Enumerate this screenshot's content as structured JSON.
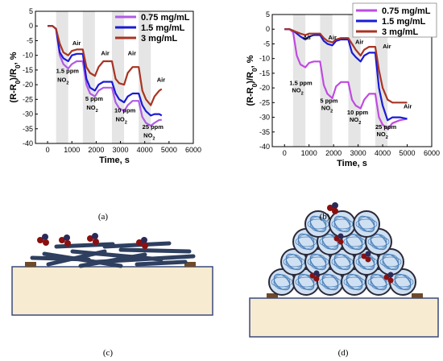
{
  "chart_data": [
    {
      "type": "line",
      "panel_label": "(a)",
      "xlabel": "Time, s",
      "ylabel": "(R-R0)/R0, %",
      "xlim": [
        -500,
        6000
      ],
      "ylim": [
        -40,
        5
      ],
      "xticks": [
        0,
        1000,
        2000,
        3000,
        4000,
        5000,
        6000
      ],
      "yticks": [
        5,
        0,
        -5,
        -10,
        -15,
        -20,
        -25,
        -30,
        -35,
        -40
      ],
      "shaded_intervals": [
        [
          350,
          850
        ],
        [
          1450,
          1950
        ],
        [
          2650,
          3150
        ],
        [
          3750,
          4250
        ]
      ],
      "legend_position": "top-right",
      "annotations": [
        {
          "text": "1.5 ppm",
          "x": 350,
          "y": -16
        },
        {
          "text": "NO2",
          "x": 400,
          "y": -19
        },
        {
          "text": "Air",
          "x": 1020,
          "y": -6.5
        },
        {
          "text": "5 ppm",
          "x": 1550,
          "y": -25.5
        },
        {
          "text": "NO2",
          "x": 1600,
          "y": -28.5
        },
        {
          "text": "Air",
          "x": 2200,
          "y": -10
        },
        {
          "text": "10 ppm",
          "x": 2750,
          "y": -29.5
        },
        {
          "text": "NO2",
          "x": 2800,
          "y": -32.5
        },
        {
          "text": "Air",
          "x": 3300,
          "y": -10
        },
        {
          "text": "25 ppm",
          "x": 3900,
          "y": -35
        },
        {
          "text": "NO2",
          "x": 3950,
          "y": -38
        },
        {
          "text": "Air",
          "x": 4500,
          "y": -19
        }
      ],
      "series": [
        {
          "name": "0.75 mg/mL",
          "color": "#b05ae6",
          "x": [
            0,
            200,
            350,
            500,
            650,
            850,
            1000,
            1200,
            1450,
            1600,
            1750,
            1950,
            2100,
            2300,
            2650,
            2800,
            2950,
            3150,
            3300,
            3500,
            3750,
            3900,
            4050,
            4250,
            4400,
            4600,
            4700
          ],
          "y": [
            0,
            0,
            -1,
            -10,
            -13,
            -14.5,
            -13,
            -12,
            -12,
            -20,
            -23,
            -24,
            -22,
            -21,
            -21,
            -26,
            -28,
            -29,
            -27,
            -25.5,
            -25.5,
            -31,
            -33,
            -34,
            -33,
            -32,
            -32
          ]
        },
        {
          "name": "1.5 mg/mL",
          "color": "#1a1ad6",
          "x": [
            0,
            200,
            350,
            500,
            650,
            850,
            1000,
            1200,
            1450,
            1600,
            1750,
            1950,
            2100,
            2300,
            2650,
            2800,
            2950,
            3150,
            3300,
            3500,
            3750,
            3900,
            4050,
            4250,
            4400,
            4600,
            4700
          ],
          "y": [
            0,
            0,
            -1,
            -9,
            -11,
            -12,
            -10,
            -9.5,
            -9.5,
            -18,
            -21,
            -22,
            -20,
            -19,
            -19,
            -23,
            -25,
            -26,
            -24,
            -23,
            -23,
            -27,
            -29,
            -30.5,
            -30,
            -30,
            -30.5
          ]
        },
        {
          "name": "3 mg/mL",
          "color": "#a83422",
          "x": [
            0,
            200,
            350,
            500,
            650,
            850,
            1000,
            1200,
            1450,
            1600,
            1750,
            1950,
            2100,
            2300,
            2650,
            2800,
            2950,
            3150,
            3300,
            3500,
            3750,
            3900,
            4050,
            4250,
            4400,
            4600,
            4700
          ],
          "y": [
            0,
            0,
            -1,
            -6,
            -9,
            -10,
            -8.5,
            -8,
            -8,
            -14,
            -16,
            -17,
            -14,
            -12,
            -12,
            -18,
            -19.5,
            -20,
            -16,
            -14,
            -14,
            -22,
            -25,
            -27,
            -24,
            -22,
            -21.5
          ]
        }
      ]
    },
    {
      "type": "line",
      "panel_label": "(b)",
      "xlabel": "Time, s",
      "ylabel": "(R-R0)/R0, %",
      "xlim": [
        -500,
        6000
      ],
      "ylim": [
        -40,
        5
      ],
      "xticks": [
        0,
        1000,
        2000,
        3000,
        4000,
        5000,
        6000
      ],
      "yticks": [
        5,
        0,
        -5,
        -10,
        -15,
        -20,
        -25,
        -30,
        -35,
        -40
      ],
      "shaded_intervals": [
        [
          350,
          850
        ],
        [
          1450,
          1950
        ],
        [
          2600,
          3100
        ],
        [
          3700,
          4200
        ]
      ],
      "legend_position": "top-right",
      "annotations": [
        {
          "text": "Air",
          "x": 750,
          "y": -3.5
        },
        {
          "text": "Air",
          "x": 1780,
          "y": -3.5
        },
        {
          "text": "Air",
          "x": 2880,
          "y": -5
        },
        {
          "text": "Air",
          "x": 4000,
          "y": -6.5
        },
        {
          "text": "1.5 ppm",
          "x": 200,
          "y": -19
        },
        {
          "text": "NO2",
          "x": 300,
          "y": -21.5
        },
        {
          "text": "5 ppm",
          "x": 1450,
          "y": -25
        },
        {
          "text": "NO2",
          "x": 1500,
          "y": -27.5
        },
        {
          "text": "10 ppm",
          "x": 2550,
          "y": -29
        },
        {
          "text": "NO2",
          "x": 2650,
          "y": -31.5
        },
        {
          "text": "25 ppm",
          "x": 3700,
          "y": -34
        },
        {
          "text": "NO2",
          "x": 3750,
          "y": -36.5
        },
        {
          "text": "Air",
          "x": 4850,
          "y": -27
        }
      ],
      "series": [
        {
          "name": "0.75 mg/mL",
          "color": "#c04ae0",
          "x": [
            0,
            200,
            350,
            500,
            650,
            850,
            1000,
            1200,
            1450,
            1600,
            1750,
            1950,
            2100,
            2300,
            2600,
            2750,
            2900,
            3100,
            3250,
            3450,
            3700,
            3850,
            4000,
            4200,
            4400,
            4700,
            5000
          ],
          "y": [
            0,
            0,
            -1,
            -9,
            -12,
            -13,
            -11.5,
            -11,
            -11,
            -19,
            -22,
            -23.5,
            -19.5,
            -18,
            -18,
            -24,
            -26,
            -27,
            -24,
            -22,
            -22,
            -30,
            -32.5,
            -34,
            -32,
            -31,
            -30.5
          ]
        },
        {
          "name": "1.5 mg/mL",
          "color": "#1a1ad6",
          "x": [
            0,
            200,
            350,
            500,
            650,
            850,
            1000,
            1200,
            1450,
            1600,
            1750,
            1950,
            2100,
            2300,
            2600,
            2750,
            2900,
            3100,
            3250,
            3450,
            3700,
            3850,
            4000,
            4200,
            4400,
            4700,
            5000
          ],
          "y": [
            0,
            0,
            -0.5,
            -1.5,
            -2.5,
            -3.5,
            -2.5,
            -2,
            -2,
            -4,
            -5,
            -5.5,
            -4,
            -3.5,
            -3.5,
            -8,
            -9.5,
            -11,
            -9,
            -8,
            -8,
            -20,
            -26,
            -31,
            -30,
            -30,
            -30.5
          ]
        },
        {
          "name": "3 mg/mL",
          "color": "#a83422",
          "x": [
            0,
            200,
            350,
            500,
            650,
            850,
            1000,
            1200,
            1450,
            1600,
            1750,
            1950,
            2100,
            2300,
            2600,
            2750,
            2900,
            3100,
            3250,
            3450,
            3700,
            3850,
            4000,
            4200,
            4400,
            4700,
            5000
          ],
          "y": [
            0,
            0,
            -0.5,
            -1,
            -1.5,
            -2,
            -1.5,
            -1.5,
            -1.5,
            -3,
            -4,
            -4.5,
            -3.5,
            -3,
            -3,
            -5,
            -7,
            -9,
            -7,
            -6,
            -6,
            -14,
            -20,
            -24,
            -25,
            -25,
            -25
          ]
        }
      ]
    }
  ],
  "captions": {
    "c": "(c)",
    "d": "(d)"
  }
}
